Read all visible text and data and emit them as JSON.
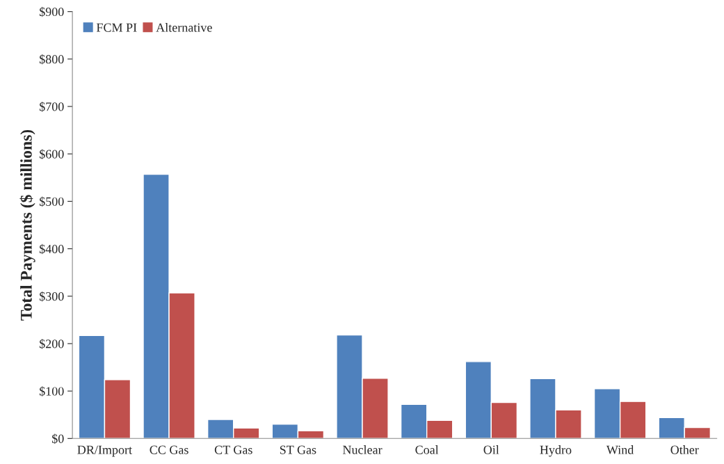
{
  "chart_data": {
    "type": "bar",
    "ylabel": "Total Payments ($ millions)",
    "categories": [
      "DR/Import",
      "CC Gas",
      "CT Gas",
      "ST Gas",
      "Nuclear",
      "Coal",
      "Oil",
      "Hydro",
      "Wind",
      "Other"
    ],
    "series": [
      {
        "name": "FCM PI",
        "color": "#4f81bd",
        "values": [
          217,
          557,
          40,
          30,
          218,
          72,
          162,
          126,
          105,
          44
        ]
      },
      {
        "name": "Alternative",
        "color": "#c0504d",
        "values": [
          124,
          307,
          22,
          16,
          127,
          38,
          76,
          60,
          78,
          23
        ]
      }
    ],
    "ylim": [
      0,
      900
    ],
    "yticks": [
      {
        "value": 0,
        "label": "$0"
      },
      {
        "value": 100,
        "label": "$100"
      },
      {
        "value": 200,
        "label": "$200"
      },
      {
        "value": 300,
        "label": "$300"
      },
      {
        "value": 400,
        "label": "$400"
      },
      {
        "value": 500,
        "label": "$500"
      },
      {
        "value": 600,
        "label": "$600"
      },
      {
        "value": 700,
        "label": "$700"
      },
      {
        "value": 800,
        "label": "$800"
      },
      {
        "value": 900,
        "label": "$900"
      }
    ],
    "grid": false,
    "legend": "top left"
  }
}
